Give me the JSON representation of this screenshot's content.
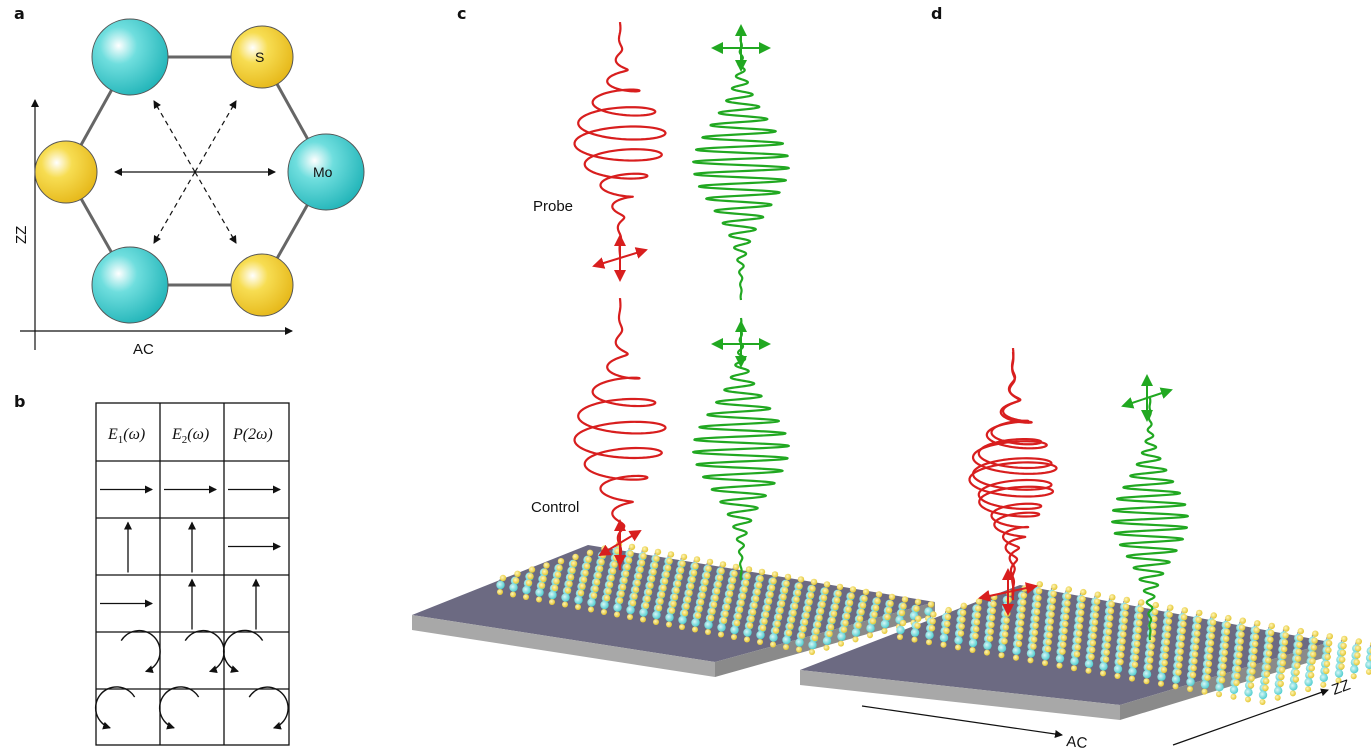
{
  "panels": {
    "a": "a",
    "b": "b",
    "c": "c",
    "d": "d"
  },
  "panel_a": {
    "atom_s": "S",
    "atom_mo": "Mo",
    "axis_x": "AC",
    "axis_y": "ZZ",
    "colors": {
      "mo": "#3cc7c9",
      "s": "#f2cc2a",
      "bond": "#666666"
    }
  },
  "panel_b": {
    "headers": [
      {
        "sym": "E",
        "sub": "1",
        "arg": "(ω)"
      },
      {
        "sym": "E",
        "sub": "2",
        "arg": "(ω)"
      },
      {
        "sym": "P",
        "sub": "",
        "arg": "(2ω)"
      }
    ],
    "rows": [
      [
        "right-arrow",
        "right-arrow",
        "right-arrow"
      ],
      [
        "up-arrow",
        "up-arrow",
        "right-arrow"
      ],
      [
        "right-arrow",
        "up-arrow",
        "up-arrow"
      ],
      [
        "clockwise-circle",
        "clockwise-circle",
        "counterclockwise-circle"
      ],
      [
        "counterclockwise-circle",
        "counterclockwise-circle",
        "clockwise-circle"
      ]
    ]
  },
  "panel_c": {
    "probe_label": "Probe",
    "control_label": "Control",
    "colors": {
      "red": "#d81e1e",
      "green": "#21a821",
      "substrate": "#6c6a82"
    }
  },
  "panel_d": {
    "axis_ac": "AC",
    "axis_zz": "ZZ"
  }
}
